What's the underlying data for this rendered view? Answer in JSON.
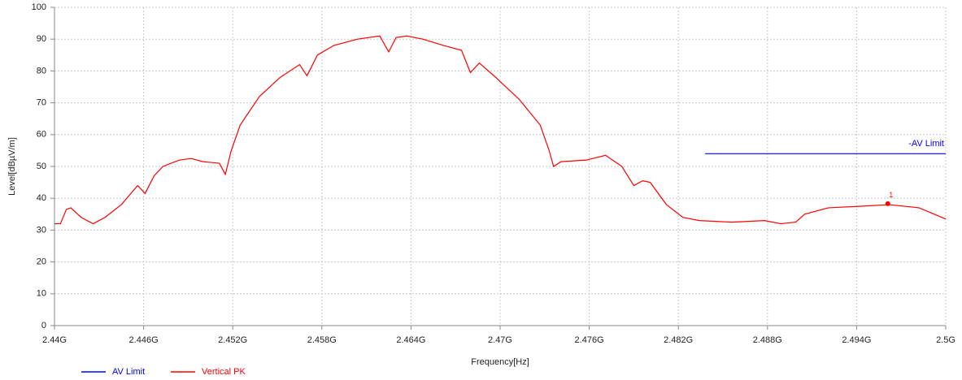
{
  "chart_data": {
    "type": "line",
    "xlabel": "Frequency[Hz]",
    "ylabel": "Level[dBµV/m]",
    "xlim": [
      2.44,
      2.5
    ],
    "ylim": [
      0,
      100
    ],
    "xticks": [
      {
        "value": 2.44,
        "label": "2.44G"
      },
      {
        "value": 2.446,
        "label": "2.446G"
      },
      {
        "value": 2.452,
        "label": "2.452G"
      },
      {
        "value": 2.458,
        "label": "2.458G"
      },
      {
        "value": 2.464,
        "label": "2.464G"
      },
      {
        "value": 2.47,
        "label": "2.47G"
      },
      {
        "value": 2.476,
        "label": "2.476G"
      },
      {
        "value": 2.482,
        "label": "2.482G"
      },
      {
        "value": 2.488,
        "label": "2.488G"
      },
      {
        "value": 2.494,
        "label": "2.494G"
      },
      {
        "value": 2.5,
        "label": "2.5G"
      }
    ],
    "yticks": [
      0,
      10,
      20,
      30,
      40,
      50,
      60,
      70,
      80,
      90,
      100
    ],
    "grid": true,
    "series": [
      {
        "name": "AV Limit",
        "color": "#0000ff",
        "line_label": "-AV Limit",
        "x": [
          2.4838,
          2.5
        ],
        "values": [
          54,
          54
        ]
      },
      {
        "name": "Vertical PK",
        "color": "#ff0000",
        "x": [
          2.44,
          2.4404,
          2.4408,
          2.4411,
          2.4418,
          2.4426,
          2.4434,
          2.4445,
          2.4456,
          2.4461,
          2.4467,
          2.4473,
          2.4484,
          2.4492,
          2.45,
          2.4511,
          2.4515,
          2.4519,
          2.4525,
          2.4538,
          2.4552,
          2.4565,
          2.457,
          2.4577,
          2.4588,
          2.4604,
          2.4619,
          2.4625,
          2.463,
          2.4637,
          2.4648,
          2.4662,
          2.4674,
          2.468,
          2.4686,
          2.4697,
          2.4713,
          2.4727,
          2.4733,
          2.4736,
          2.4741,
          2.4758,
          2.4771,
          2.4782,
          2.479,
          2.4796,
          2.4801,
          2.4812,
          2.4823,
          2.4834,
          2.4856,
          2.4878,
          2.4889,
          2.4899,
          2.4905,
          2.4921,
          2.4943,
          2.4962,
          2.4982,
          2.5
        ],
        "values": [
          32,
          32,
          36.5,
          37,
          34,
          32,
          34,
          38,
          44,
          41.5,
          47,
          50,
          52,
          52.5,
          51.5,
          51,
          47.5,
          55,
          63,
          72,
          78,
          82,
          78.5,
          85,
          88,
          90,
          91,
          86,
          90.5,
          91,
          90,
          88,
          86.5,
          79.5,
          82.5,
          78,
          71,
          63,
          55,
          50,
          51.5,
          52,
          53.5,
          50,
          44,
          45.5,
          45,
          38,
          34,
          33,
          32.5,
          33,
          32,
          32.5,
          35,
          37,
          37.5,
          38,
          37,
          33.5
        ]
      }
    ],
    "markers": [
      {
        "label": "1",
        "x": 2.4961,
        "y": 38.3
      }
    ]
  }
}
